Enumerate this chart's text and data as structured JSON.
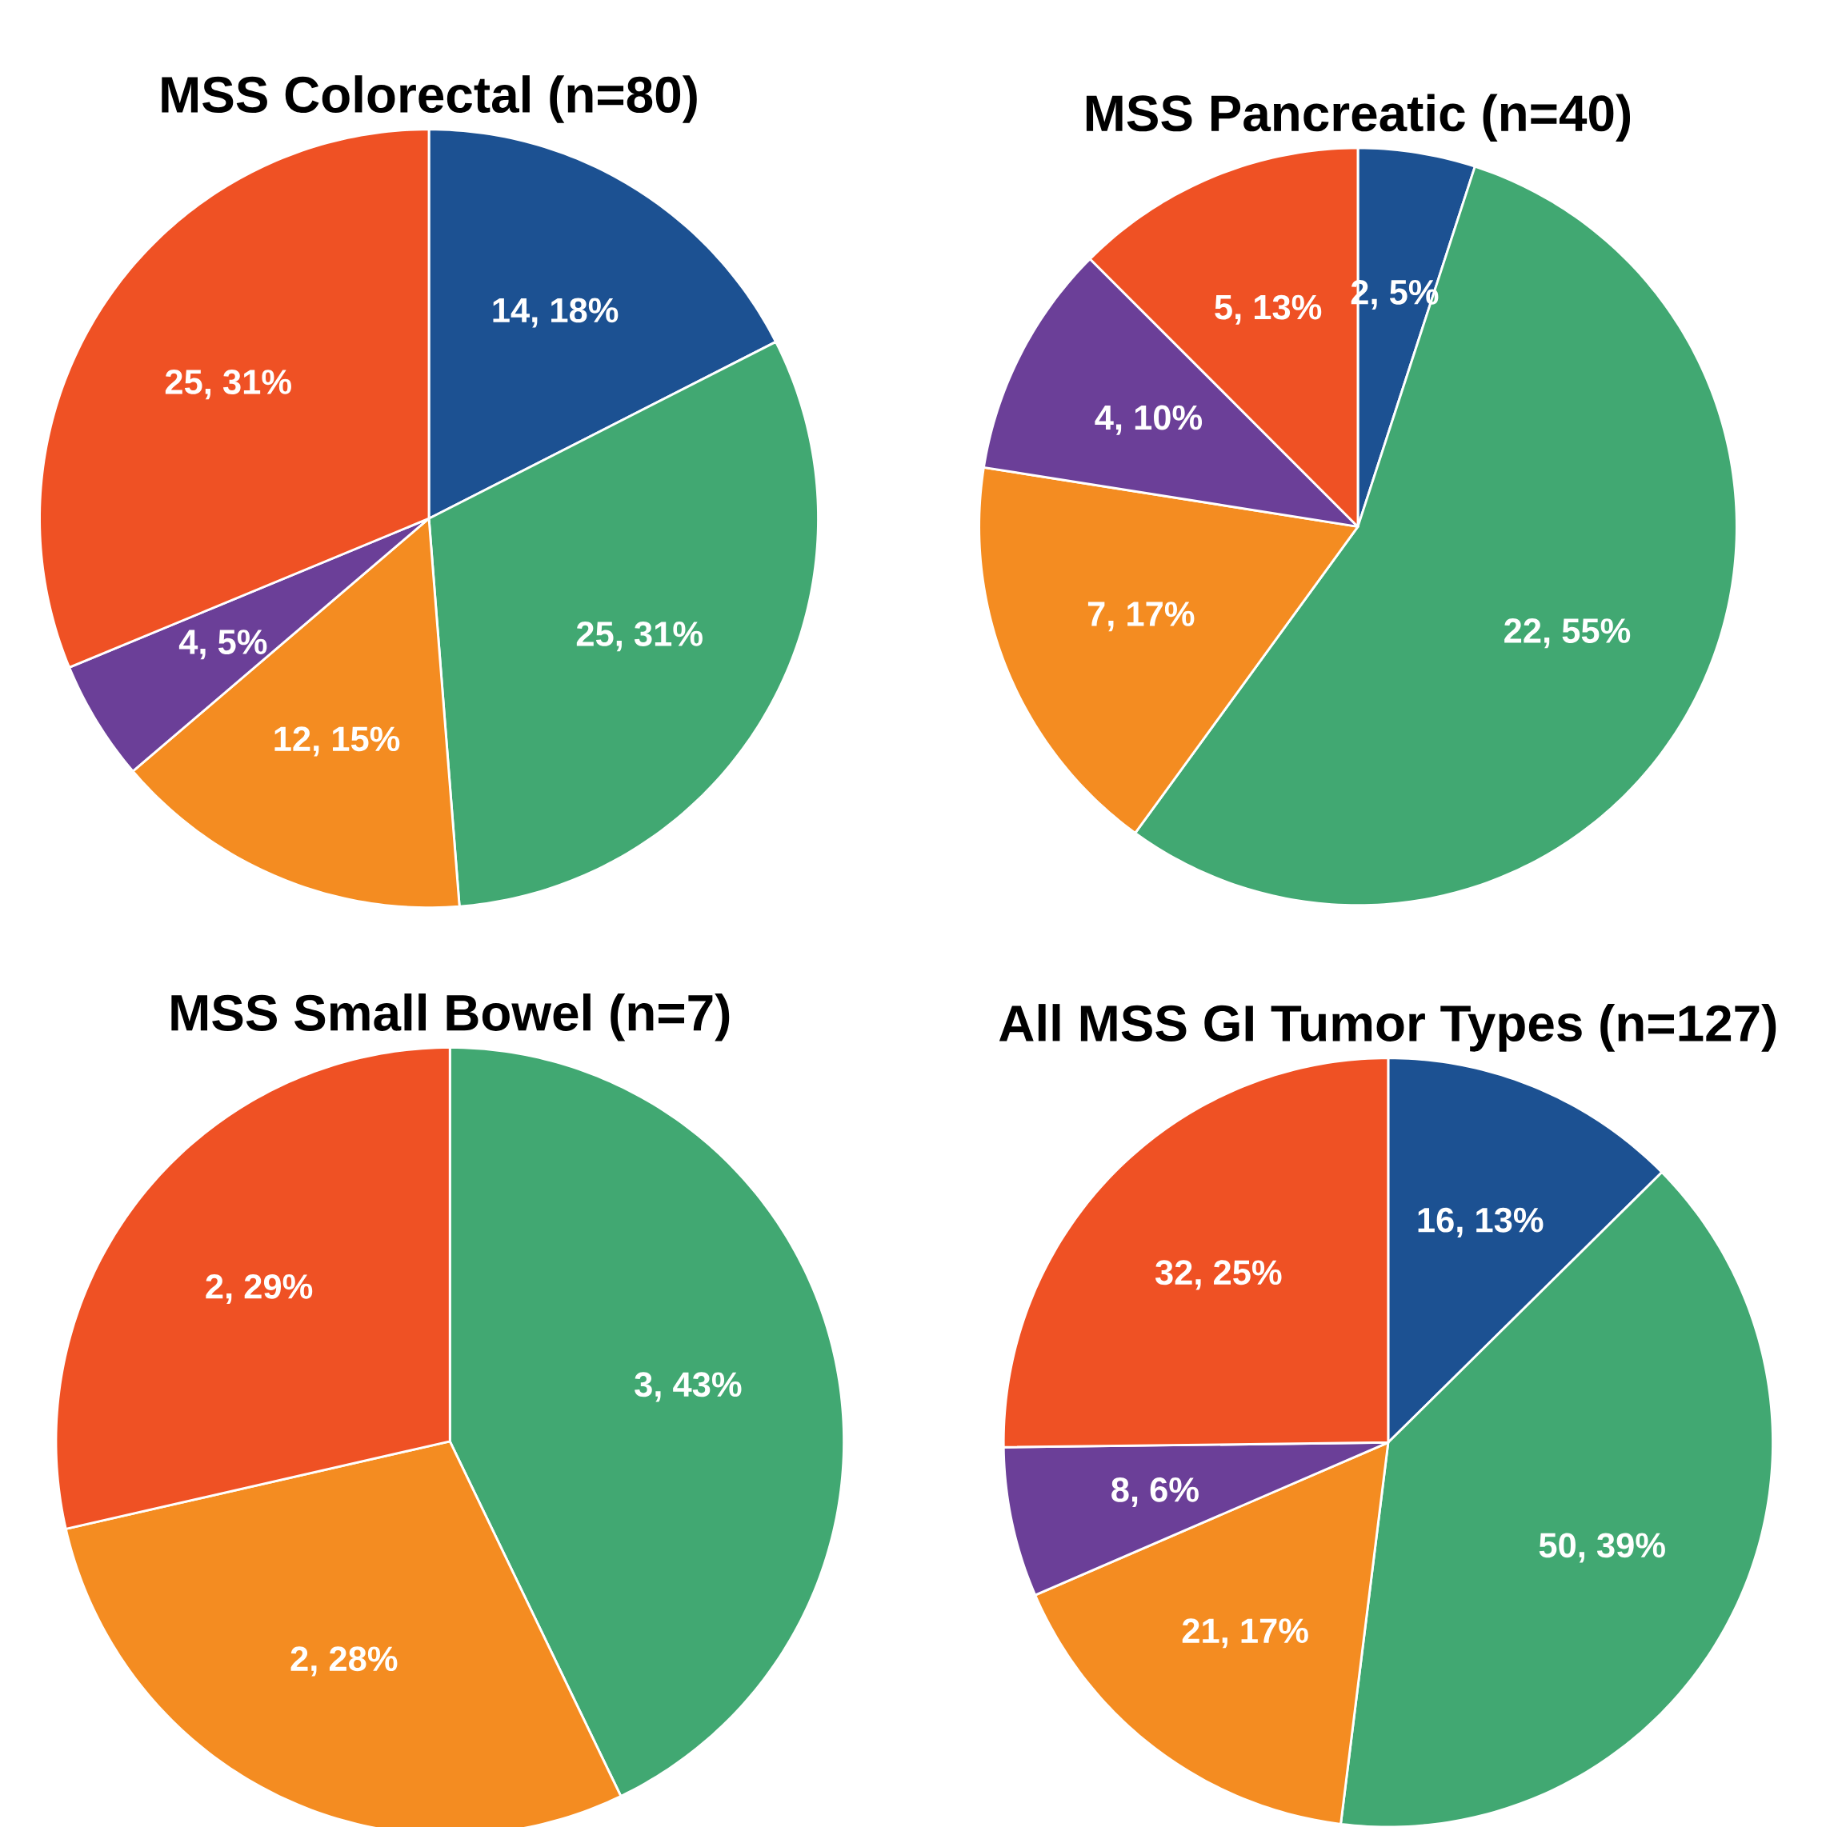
{
  "chart_data": [
    {
      "type": "pie",
      "title": "MSS Colorectal (n=80)",
      "categories": [
        null,
        null,
        null,
        null,
        null
      ],
      "values": [
        14,
        25,
        12,
        4,
        25
      ],
      "colors": [
        "#1c5192",
        "#41a872",
        "#f48c21",
        "#6b3f98",
        "#ef5124"
      ],
      "value_labels": [
        "14, 18%",
        "25, 31%",
        "12, 15%",
        "4, 5%",
        "25, 31%"
      ]
    },
    {
      "type": "pie",
      "title": "MSS Pancreatic (n=40)",
      "categories": [
        null,
        null,
        null,
        null,
        null
      ],
      "values": [
        2,
        22,
        7,
        4,
        5
      ],
      "colors": [
        "#1c5192",
        "#41a872",
        "#f48c21",
        "#6b3f98",
        "#ef5124"
      ],
      "value_labels": [
        "2, 5%",
        "22, 55%",
        "7, 17%",
        "4, 10%",
        "5, 13%"
      ]
    },
    {
      "type": "pie",
      "title": "MSS Small Bowel (n=7)",
      "categories": [
        null,
        null,
        null
      ],
      "values": [
        3,
        2,
        2
      ],
      "colors": [
        "#41a872",
        "#f48c21",
        "#ef5124"
      ],
      "value_labels": [
        "3, 43%",
        "2, 28%",
        "2, 29%"
      ]
    },
    {
      "type": "pie",
      "title": "All MSS GI Tumor Types (n=127)",
      "categories": [
        null,
        null,
        null,
        null,
        null
      ],
      "values": [
        16,
        50,
        21,
        8,
        32
      ],
      "colors": [
        "#1c5192",
        "#41a872",
        "#f48c21",
        "#6b3f98",
        "#ef5124"
      ],
      "value_labels": [
        "16, 13%",
        "50, 39%",
        "21, 17%",
        "8, 6%",
        "32, 25%"
      ]
    }
  ]
}
